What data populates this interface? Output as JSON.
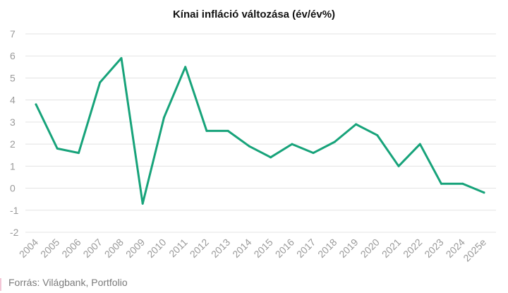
{
  "title": "Kínai infláció változása (év/év%)",
  "source": "Forrás: Világbank, Portfolio",
  "colors": {
    "line": "#17a37a",
    "grid": "#e3e3e3",
    "tick_label": "#9a9a9a"
  },
  "chart_data": {
    "type": "line",
    "title": "Kínai infláció változása (év/év%)",
    "xlabel": "",
    "ylabel": "",
    "ylim": [
      -2,
      7
    ],
    "yticks": [
      "7",
      "6",
      "5",
      "4",
      "3",
      "2",
      "1",
      "0",
      "-1",
      "-2"
    ],
    "grid": true,
    "legend": "none",
    "categories": [
      "2004",
      "2005",
      "2006",
      "2007",
      "2008",
      "2009",
      "2010",
      "2011",
      "2012",
      "2013",
      "2014",
      "2015",
      "2016",
      "2017",
      "2018",
      "2019",
      "2020",
      "2021",
      "2022",
      "2023",
      "2024",
      "2025e"
    ],
    "series": [
      {
        "values": [
          3.8,
          1.8,
          1.6,
          4.8,
          5.9,
          -0.7,
          3.2,
          5.5,
          2.6,
          2.6,
          1.9,
          1.4,
          2.0,
          1.6,
          2.1,
          2.9,
          2.4,
          1.0,
          2.0,
          0.2,
          0.2,
          -0.2
        ]
      }
    ]
  }
}
